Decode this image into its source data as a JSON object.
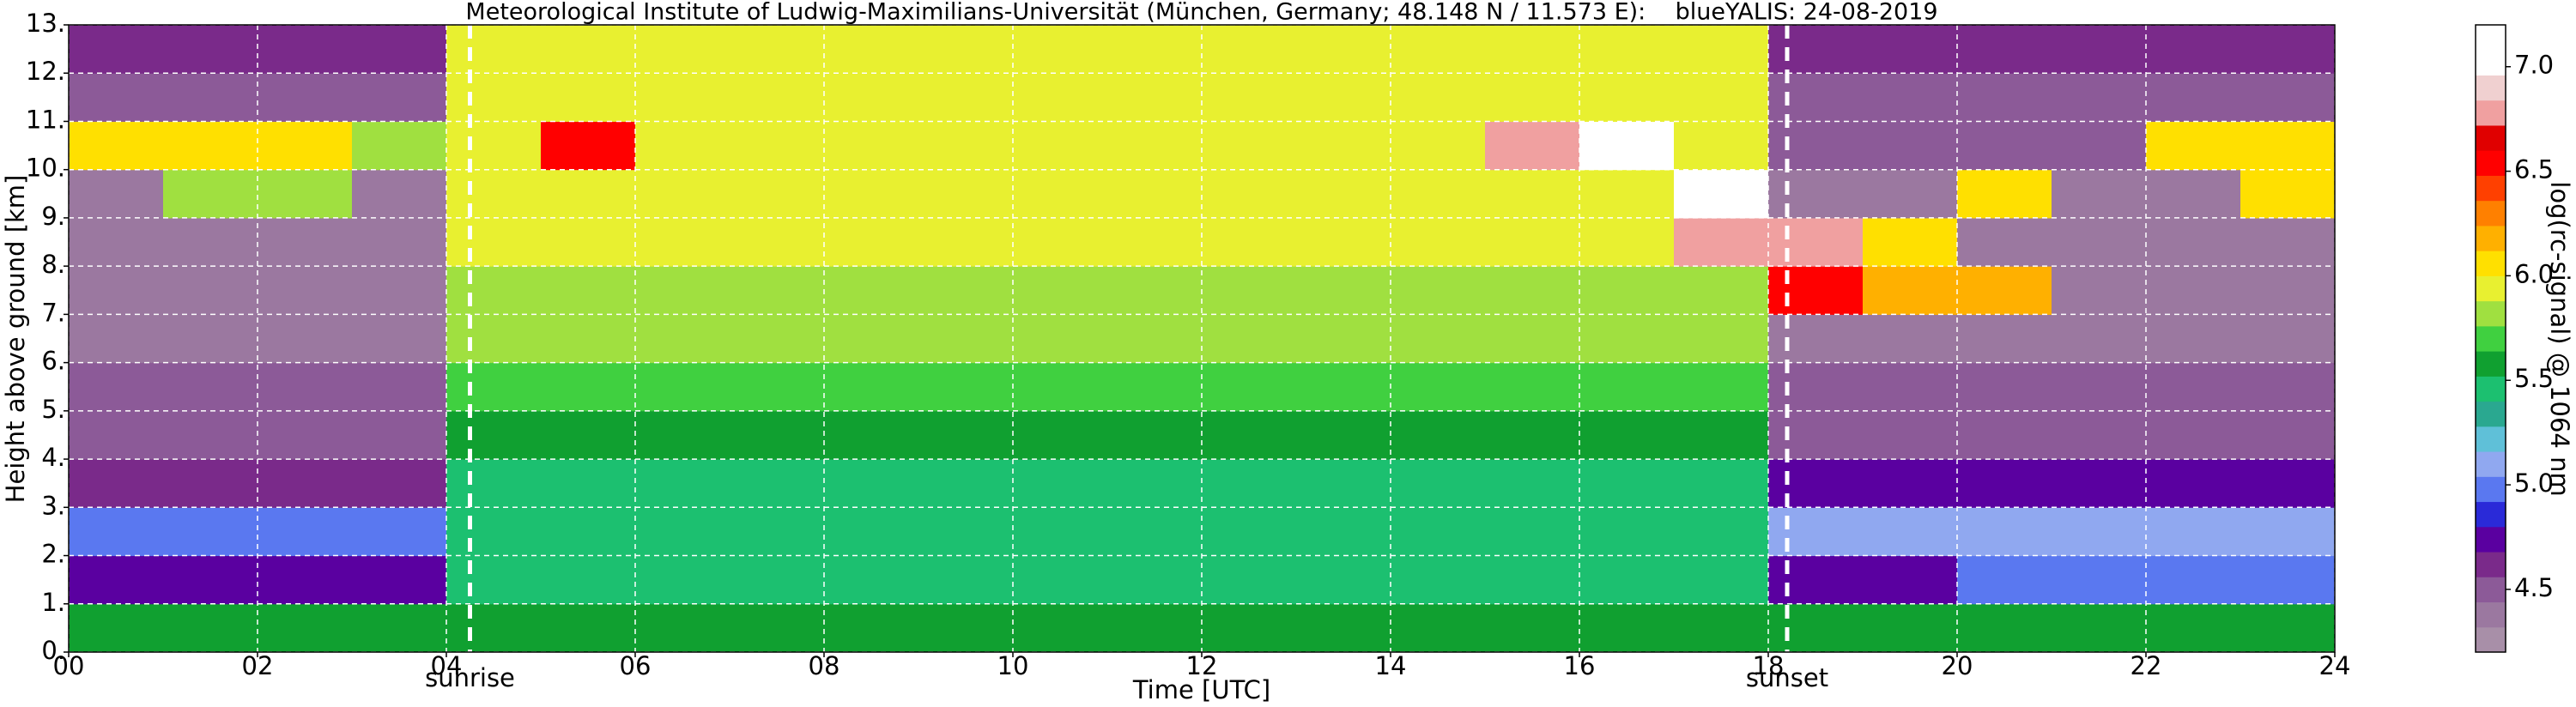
{
  "chart_data": {
    "type": "heatmap",
    "title": "Meteorological Institute of Ludwig-Maximilians-Universität (München, Germany; 48.148 N / 11.573 E):    blueYALIS: 24-08-2019",
    "xlabel": "Time [UTC]",
    "ylabel": "Height above ground [km]",
    "colorbar_label": "log(rc-signal) @ 1064 nm",
    "xbins": [
      0,
      1,
      2,
      3,
      4,
      5,
      6,
      7,
      8,
      9,
      10,
      11,
      12,
      13,
      14,
      15,
      16,
      17,
      18,
      19,
      20,
      21,
      22,
      23,
      24
    ],
    "ybins": [
      0,
      1,
      2,
      3,
      4,
      5,
      6,
      7,
      8,
      9,
      10,
      11,
      12,
      13
    ],
    "z": [
      [
        5.6,
        5.6,
        5.6,
        5.6,
        5.6,
        5.6,
        5.6,
        5.6,
        5.6,
        5.6,
        5.6,
        5.6,
        5.6,
        5.6,
        5.6,
        5.6,
        5.6,
        5.6,
        5.6,
        5.6,
        5.6,
        5.6,
        5.6,
        5.6
      ],
      [
        4.8,
        4.8,
        4.8,
        4.8,
        5.4,
        5.4,
        5.4,
        5.4,
        5.4,
        5.4,
        5.4,
        5.4,
        5.4,
        5.4,
        5.4,
        5.4,
        5.4,
        5.4,
        4.8,
        4.8,
        5.0,
        5.0,
        5.0,
        5.0
      ],
      [
        4.95,
        4.95,
        4.95,
        4.95,
        5.4,
        5.4,
        5.4,
        5.4,
        5.4,
        5.4,
        5.4,
        5.4,
        5.4,
        5.4,
        5.4,
        5.4,
        5.4,
        5.4,
        5.1,
        5.1,
        5.1,
        5.1,
        5.1,
        5.1
      ],
      [
        4.6,
        4.6,
        4.6,
        4.6,
        5.5,
        5.5,
        5.5,
        5.5,
        5.5,
        5.5,
        5.5,
        5.5,
        5.5,
        5.5,
        5.5,
        5.5,
        5.5,
        5.5,
        4.7,
        4.7,
        4.7,
        4.7,
        4.7,
        4.7
      ],
      [
        4.5,
        4.5,
        4.5,
        4.5,
        5.6,
        5.6,
        5.6,
        5.6,
        5.6,
        5.6,
        5.6,
        5.6,
        5.6,
        5.6,
        5.6,
        5.6,
        5.6,
        5.6,
        4.5,
        4.5,
        4.5,
        4.5,
        4.5,
        4.5
      ],
      [
        4.5,
        4.5,
        4.5,
        4.5,
        5.7,
        5.7,
        5.7,
        5.7,
        5.7,
        5.7,
        5.7,
        5.7,
        5.7,
        5.7,
        5.7,
        5.7,
        5.7,
        5.7,
        4.5,
        4.5,
        4.5,
        4.5,
        4.5,
        4.5
      ],
      [
        4.4,
        4.4,
        4.4,
        4.4,
        5.8,
        5.8,
        5.8,
        5.8,
        5.8,
        5.8,
        5.8,
        5.8,
        5.8,
        5.8,
        5.8,
        5.8,
        5.8,
        5.8,
        4.4,
        4.4,
        4.4,
        4.4,
        4.4,
        4.4
      ],
      [
        4.4,
        4.4,
        4.4,
        4.4,
        5.8,
        5.8,
        5.8,
        5.8,
        5.8,
        5.8,
        5.8,
        5.8,
        5.8,
        5.8,
        5.8,
        5.8,
        5.8,
        5.8,
        6.5,
        6.2,
        6.2,
        4.4,
        4.4,
        4.4
      ],
      [
        4.4,
        4.4,
        4.4,
        4.4,
        5.9,
        5.9,
        5.9,
        5.9,
        5.9,
        5.9,
        5.9,
        5.9,
        5.9,
        5.9,
        5.9,
        5.9,
        5.9,
        6.8,
        6.8,
        6.0,
        4.4,
        4.4,
        4.4,
        4.4
      ],
      [
        4.4,
        5.8,
        5.8,
        4.4,
        5.9,
        5.9,
        5.9,
        5.9,
        5.9,
        5.9,
        5.9,
        5.9,
        5.9,
        5.9,
        5.9,
        5.9,
        5.9,
        7.0,
        4.4,
        4.4,
        6.1,
        4.4,
        4.4,
        6.0
      ],
      [
        6.1,
        6.1,
        6.1,
        5.8,
        5.9,
        6.6,
        5.9,
        5.9,
        5.9,
        5.9,
        5.9,
        5.9,
        5.9,
        5.9,
        5.9,
        6.8,
        7.0,
        5.9,
        4.5,
        4.5,
        4.5,
        4.5,
        6.0,
        6.0
      ],
      [
        4.5,
        4.5,
        4.5,
        4.5,
        5.9,
        5.9,
        5.9,
        5.9,
        5.9,
        5.9,
        5.9,
        5.9,
        5.9,
        5.9,
        5.9,
        5.9,
        5.9,
        5.9,
        4.5,
        4.5,
        4.5,
        4.5,
        4.5,
        4.5
      ],
      [
        4.6,
        4.6,
        4.6,
        4.6,
        5.9,
        5.9,
        5.9,
        5.9,
        5.9,
        5.9,
        5.9,
        5.9,
        5.9,
        5.9,
        5.9,
        5.9,
        5.9,
        5.9,
        4.6,
        4.6,
        4.6,
        4.6,
        4.6,
        4.6
      ]
    ],
    "xlim": [
      0,
      24
    ],
    "xticks": [
      {
        "value": 0,
        "label": "00"
      },
      {
        "value": 2,
        "label": "02"
      },
      {
        "value": 4,
        "label": "04"
      },
      {
        "value": 6,
        "label": "06"
      },
      {
        "value": 8,
        "label": "08"
      },
      10,
      12,
      14,
      16,
      18,
      20,
      22,
      24
    ],
    "ylim": [
      0,
      13
    ],
    "yticks": [
      {
        "value": 0,
        "label": "0."
      },
      {
        "value": 1,
        "label": "1."
      },
      {
        "value": 2,
        "label": "2."
      },
      {
        "value": 3,
        "label": "3."
      },
      {
        "value": 4,
        "label": "4."
      },
      {
        "value": 5,
        "label": "5."
      },
      {
        "value": 6,
        "label": "6."
      },
      {
        "value": 7,
        "label": "7."
      },
      {
        "value": 8,
        "label": "8."
      },
      {
        "value": 9,
        "label": "9."
      },
      {
        "value": 10,
        "label": "10."
      },
      {
        "value": 11,
        "label": "11."
      },
      {
        "value": 12,
        "label": "12."
      },
      {
        "value": 13,
        "label": "13."
      }
    ],
    "clim": [
      4.2,
      7.2
    ],
    "cticks": [
      4.5,
      {
        "value": 5,
        "label": "5.0"
      },
      5.5,
      {
        "value": 6,
        "label": "6.0"
      },
      6.5,
      {
        "value": 7,
        "label": "7.0"
      }
    ],
    "colormap": [
      "#a88fa8",
      "#9b78a0",
      "#8c5a98",
      "#7a2a8a",
      "#5a00a0",
      "#2a2ad8",
      "#5a78f0",
      "#90a8f0",
      "#5fc0d8",
      "#2aa890",
      "#1cc070",
      "#10a030",
      "#40d040",
      "#a0e040",
      "#e8f030",
      "#ffe000",
      "#ffb000",
      "#ff8000",
      "#ff4000",
      "#ff0000",
      "#e00000",
      "#f0a0a0",
      "#f0d0d0",
      "#ffffff",
      "#ffffff"
    ],
    "grid": true,
    "annotations": [
      {
        "x": 4.25,
        "label": "sunrise"
      },
      {
        "x": 18.2,
        "label": "sunset"
      }
    ]
  }
}
